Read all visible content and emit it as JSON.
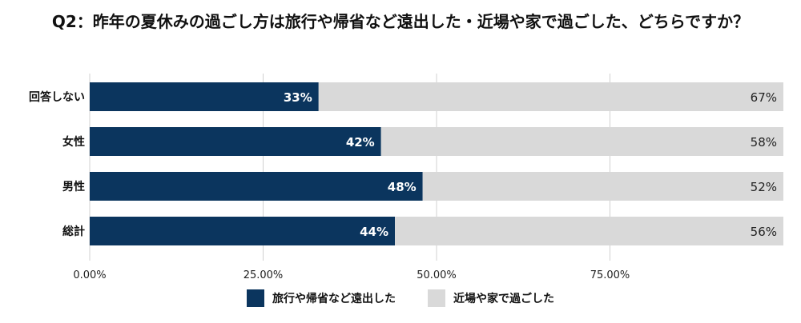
{
  "chart_data": {
    "type": "bar",
    "orientation": "horizontal",
    "stacked": true,
    "title": "Q2：昨年の夏休みの過ごし方は旅行や帰省など遠出した・近場や家で過ごした、どちらですか？",
    "categories": [
      "回答しない",
      "女性",
      "男性",
      "総計"
    ],
    "series": [
      {
        "name": "旅行や帰省など遠出した",
        "values": [
          33,
          42,
          48,
          44
        ],
        "labels": [
          "33%",
          "42%",
          "48%",
          "44%"
        ],
        "color": "#0b355e"
      },
      {
        "name": "近場や家で過ごした",
        "values": [
          67,
          58,
          52,
          56
        ],
        "labels": [
          "67%",
          "58%",
          "52%",
          "56%"
        ],
        "color": "#d9d9d9"
      }
    ],
    "xlim": [
      0,
      100
    ],
    "xticks": [
      "0.00%",
      "25.00%",
      "50.00%",
      "75.00%"
    ],
    "xtick_values": [
      0,
      25,
      50,
      75
    ],
    "grid": true,
    "legend_position": "bottom"
  }
}
